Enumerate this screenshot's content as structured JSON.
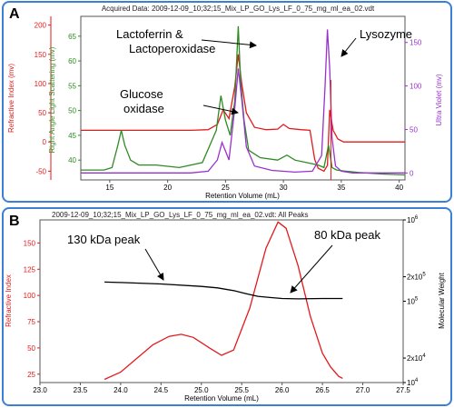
{
  "chart_data": [
    {
      "panel_label": "A",
      "type": "line",
      "title": "Acquired Data: 2009-12-09_10;32;15_Mix_LP_GO_Lys_LF_0_75_mg_ml_ea_02.vdt",
      "xlabel": "Retention Volume (mL)",
      "xlim": [
        12.5,
        40.5
      ],
      "x_ticks": [
        "15",
        "20",
        "25",
        "30",
        "35",
        "40"
      ],
      "y_axes": [
        {
          "label": "Refractive Index (mv)",
          "ylim": [
            -65,
            215
          ],
          "ticks": [
            "-50",
            "0",
            "50",
            "100",
            "150",
            "200"
          ],
          "color": "#e31a1c"
        },
        {
          "label": "Right Angle Light Scattering (mv)",
          "ylim": [
            36,
            69
          ],
          "ticks": [
            "40",
            "45",
            "50",
            "55",
            "60",
            "65"
          ],
          "color": "#2e8b22"
        },
        {
          "label": "Ultra Violet (mv)",
          "ylim": [
            -8,
            180
          ],
          "ticks": [
            "0",
            "50",
            "100",
            "150"
          ],
          "color": "#9932cc"
        }
      ],
      "series": [
        {
          "name": "",
          "color": "#e31a1c",
          "axis": 0,
          "x": [
            12.5,
            22.0,
            23.5,
            24.3,
            24.8,
            25.3,
            25.8,
            26.1,
            26.4,
            26.8,
            27.5,
            28.5,
            29.5,
            30.0,
            30.5,
            31.5,
            32.3,
            32.7,
            33.0,
            33.5,
            33.8,
            34.0,
            34.3,
            34.7,
            35.2,
            36.0,
            38.0,
            40.5
          ],
          "y": [
            20,
            20,
            21,
            30,
            55,
            40,
            95,
            150,
            100,
            50,
            25,
            21,
            22,
            30,
            23,
            21,
            20,
            -30,
            -45,
            -50,
            -40,
            55,
            20,
            5,
            0,
            0,
            0,
            0
          ]
        },
        {
          "name": "",
          "color": "#2e8b22",
          "axis": 1,
          "x": [
            12.5,
            14.5,
            15.2,
            15.7,
            16.0,
            16.3,
            16.8,
            17.5,
            19.0,
            21.0,
            23.0,
            24.2,
            24.6,
            25.0,
            25.4,
            25.8,
            26.1,
            26.3,
            26.6,
            27.0,
            28.0,
            29.5,
            30.3,
            31.0,
            32.0,
            33.0,
            33.5,
            33.9,
            34.2,
            34.6,
            35.2,
            36.5,
            38.5,
            40.5
          ],
          "y": [
            38,
            38,
            38.5,
            43,
            46,
            43,
            40,
            39,
            39,
            38.5,
            39.5,
            46,
            53,
            48,
            45,
            52,
            67,
            56,
            48,
            42,
            40.5,
            40,
            41,
            40,
            39.5,
            39,
            38.5,
            43,
            38.5,
            38,
            37.8,
            37.5,
            37.2,
            37
          ]
        },
        {
          "name": "",
          "color": "#9932cc",
          "axis": 2,
          "x": [
            12.5,
            22.0,
            23.5,
            24.3,
            24.7,
            25.0,
            25.3,
            25.8,
            26.1,
            26.4,
            26.8,
            27.5,
            29.0,
            31.0,
            32.5,
            33.3,
            33.6,
            33.8,
            34.0,
            34.2,
            34.5,
            35.0,
            36.0,
            38.0,
            40.5
          ],
          "y": [
            0,
            0,
            2,
            15,
            35,
            25,
            15,
            75,
            120,
            85,
            30,
            8,
            3,
            1,
            2,
            20,
            100,
            165,
            120,
            40,
            8,
            2,
            0,
            0,
            0
          ]
        }
      ],
      "annotations": [
        {
          "text": "Lactoferrin &",
          "text2": "Lactoperoxidase"
        },
        {
          "text": "Glucose",
          "text2": "oxidase"
        },
        {
          "text": "Lysozyme"
        }
      ],
      "vertical_marker_x": 34.1,
      "grid": false
    },
    {
      "panel_label": "B",
      "type": "line",
      "title": "2009-12-09_10;32;15_Mix_LP_GO_Lys_LF_0_75_mg_ml_ea_02.vdt: All Peaks",
      "xlabel": "Retention Volume (mL)",
      "xlim": [
        23.0,
        27.5
      ],
      "x_ticks": [
        "23.0",
        "23.5",
        "24.0",
        "24.5",
        "25.0",
        "25.5",
        "26.0",
        "26.5",
        "27.0",
        "27.5"
      ],
      "y_axes": [
        {
          "label": "Refractive Index",
          "ylim": [
            17,
            172
          ],
          "ticks": [
            "25",
            "50",
            "75",
            "100",
            "125",
            "150"
          ],
          "color": "#e31a1c"
        },
        {
          "label": "Molecular Weight",
          "scale": "log",
          "ylim": [
            10000,
            1000000
          ],
          "ticks": [
            "10",
            "2x10",
            "10",
            "2x10",
            "10"
          ],
          "tick_exponents": [
            "4",
            "4",
            "5",
            "5",
            "6"
          ],
          "color": "#000000"
        }
      ],
      "series": [
        {
          "name": "",
          "color": "#e31a1c",
          "axis": 0,
          "x": [
            23.8,
            24.0,
            24.2,
            24.4,
            24.6,
            24.75,
            24.9,
            25.1,
            25.25,
            25.4,
            25.6,
            25.8,
            25.95,
            26.05,
            26.2,
            26.35,
            26.5,
            26.6,
            26.7,
            26.75
          ],
          "y": [
            20,
            27,
            40,
            53,
            61,
            63,
            60,
            50,
            43,
            48,
            88,
            145,
            170,
            164,
            128,
            80,
            45,
            32,
            23,
            21
          ]
        },
        {
          "name": "",
          "color": "#000000",
          "axis": 1,
          "x": [
            23.8,
            24.0,
            24.5,
            25.0,
            25.2,
            25.4,
            25.55,
            25.7,
            25.85,
            26.0,
            26.2,
            26.5,
            26.75
          ],
          "y": [
            172000,
            170000,
            163000,
            152000,
            146000,
            135000,
            124000,
            115000,
            111000,
            108000,
            107000,
            108000,
            108000
          ]
        }
      ],
      "annotations": [
        {
          "text": "130 kDa peak"
        },
        {
          "text": "80 kDa peak"
        }
      ],
      "grid": false
    }
  ]
}
